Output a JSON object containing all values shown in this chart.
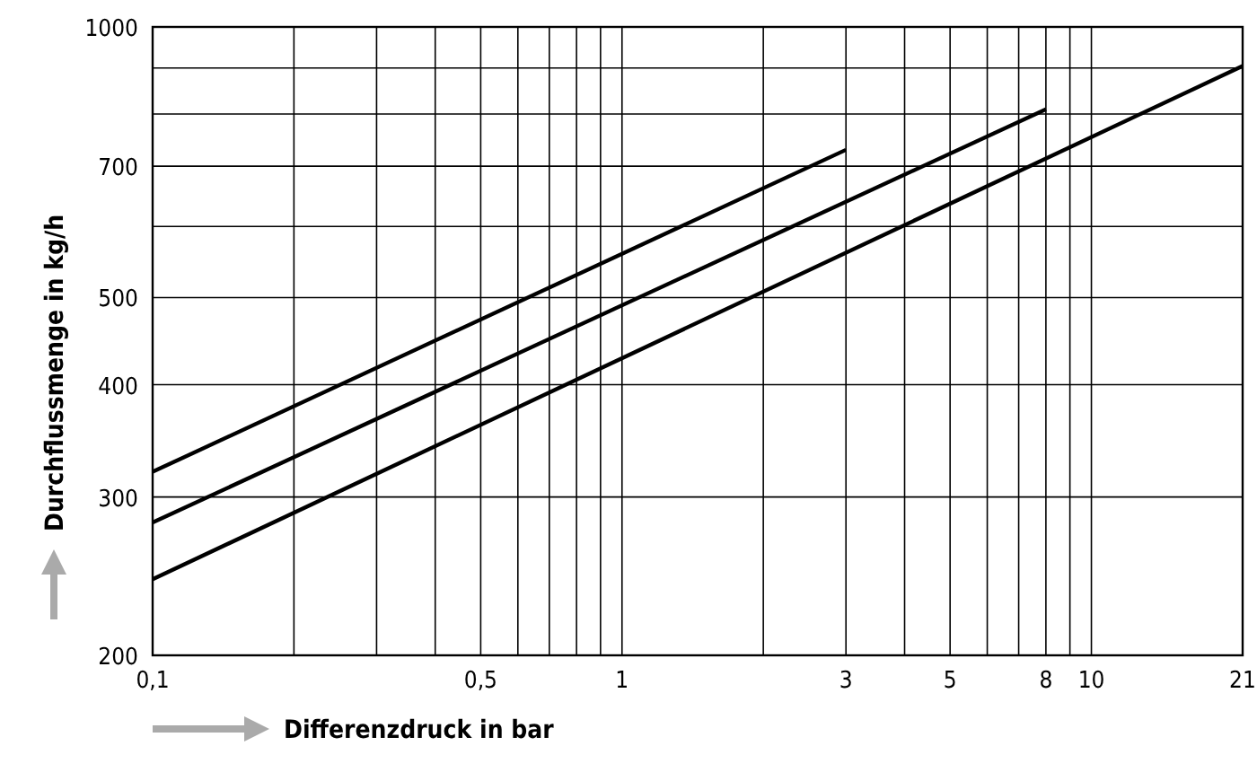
{
  "chart_data": {
    "type": "line",
    "xlabel": "Differenzdruck in bar",
    "ylabel": "Durchflussmenge in kg/h",
    "log": "xy",
    "grid": true,
    "marker": "none",
    "line_style": "solid",
    "xlim": [
      0.1,
      21
    ],
    "ylim": [
      200,
      1000
    ],
    "xticks": [
      {
        "value": 0.1,
        "label": "0,1"
      },
      {
        "value": 0.2,
        "label": null
      },
      {
        "value": 0.3,
        "label": null
      },
      {
        "value": 0.4,
        "label": null
      },
      {
        "value": 0.5,
        "label": "0,5"
      },
      {
        "value": 0.6,
        "label": null
      },
      {
        "value": 0.7,
        "label": null
      },
      {
        "value": 0.8,
        "label": null
      },
      {
        "value": 0.9,
        "label": null
      },
      1,
      {
        "value": 2,
        "label": null
      },
      3,
      {
        "value": 4,
        "label": null
      },
      5,
      {
        "value": 6,
        "label": null
      },
      {
        "value": 7,
        "label": null
      },
      8,
      {
        "value": 9,
        "label": null
      },
      10,
      21
    ],
    "yticks": [
      200,
      300,
      400,
      500,
      {
        "value": 600,
        "label": null
      },
      700,
      {
        "value": 800,
        "label": null
      },
      {
        "value": 900,
        "label": null
      },
      1000
    ],
    "series": [
      {
        "color": "#000000",
        "x": [
          0.1,
          3
        ],
        "values": [
          320,
          730
        ]
      },
      {
        "color": "#000000",
        "x": [
          0.1,
          8
        ],
        "values": [
          281,
          810
        ]
      },
      {
        "color": "#000000",
        "x": [
          0.1,
          21
        ],
        "values": [
          243,
          905
        ]
      }
    ]
  }
}
